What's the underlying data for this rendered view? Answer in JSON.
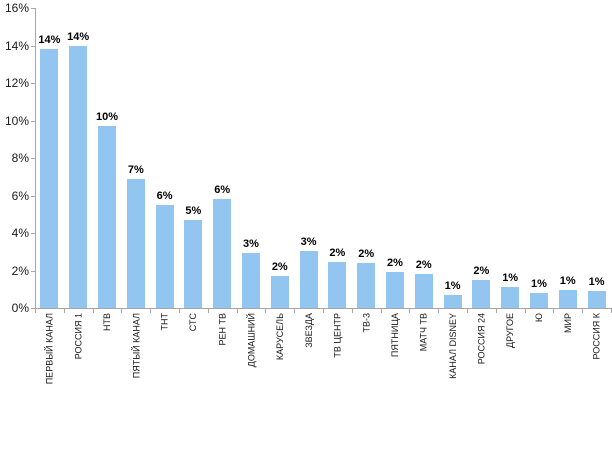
{
  "chart_data": {
    "type": "bar",
    "title": "",
    "xlabel": "",
    "ylabel": "",
    "categories": [
      "ПЕРВЫЙ КАНАЛ",
      "РОССИЯ 1",
      "НТВ",
      "ПЯТЫЙ КАНАЛ",
      "ТНТ",
      "СТС",
      "РЕН ТВ",
      "ДОМАШНИЙ",
      "КАРУСЕЛЬ",
      "ЗВЕЗДА",
      "ТВ ЦЕНТР",
      "ТВ-3",
      "ПЯТНИЦА",
      "МАТЧ ТВ",
      "КАНАЛ DISNEY",
      "РОССИЯ 24",
      "ДРУГОЕ",
      "Ю",
      "МИР",
      "РОССИЯ К"
    ],
    "values": [
      13.8,
      14.0,
      9.7,
      6.9,
      5.5,
      4.7,
      5.8,
      2.95,
      1.7,
      3.05,
      2.45,
      2.4,
      1.9,
      1.8,
      0.7,
      1.5,
      1.1,
      0.8,
      0.95,
      0.9
    ],
    "bar_labels": [
      "14%",
      "14%",
      "10%",
      "7%",
      "6%",
      "5%",
      "6%",
      "3%",
      "2%",
      "3%",
      "2%",
      "2%",
      "2%",
      "2%",
      "1%",
      "2%",
      "1%",
      "1%",
      "1%",
      "1%"
    ],
    "ylim": [
      0,
      16
    ],
    "ytick_step": 2,
    "ytick_labels": [
      "0%",
      "2%",
      "4%",
      "6%",
      "8%",
      "10%",
      "12%",
      "14%",
      "16%"
    ],
    "grid": false,
    "legend": false,
    "category_label_rotation_deg": -90,
    "colors": {
      "bar_fill": "#92C5F0",
      "axis_line": "#A6A6A6",
      "bar_label_text": "#000000",
      "axis_label_text": "#1A1A1A",
      "background": "#FFFFFF"
    }
  }
}
